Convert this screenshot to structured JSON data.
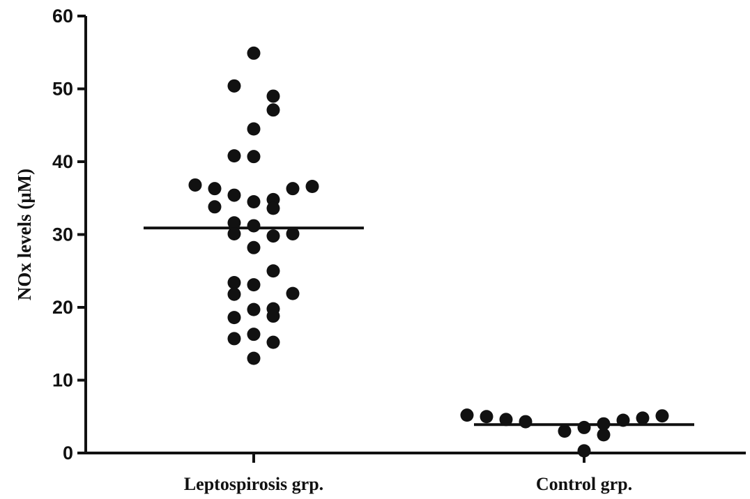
{
  "chart_data": {
    "type": "scatter",
    "title": "",
    "xlabel": "",
    "ylabel": "NOx levels (μM)",
    "ylim": [
      0,
      60
    ],
    "yticks": [
      "0",
      "10",
      "20",
      "30",
      "40",
      "50",
      "60"
    ],
    "categories": [
      "Leptospirosis grp.",
      "Control grp."
    ],
    "grid": false,
    "series": [
      {
        "category": "Leptospirosis grp.",
        "mean": 30.9,
        "values": [
          54.9,
          50.4,
          49.0,
          47.1,
          44.5,
          40.8,
          40.7,
          36.8,
          36.3,
          35.4,
          34.5,
          34.8,
          36.3,
          36.6,
          33.8,
          33.6,
          31.6,
          31.2,
          30.1,
          29.8,
          30.1,
          28.2,
          25.0,
          23.4,
          23.1,
          21.8,
          19.7,
          19.8,
          21.9,
          18.6,
          18.8,
          15.7,
          16.3,
          15.2,
          13.0
        ],
        "offsets": [
          0,
          -1,
          1,
          1,
          0,
          -1,
          0,
          -3,
          -2,
          -1,
          0,
          1,
          2,
          3,
          -2,
          1,
          -1,
          0,
          -1,
          1,
          2,
          0,
          1,
          -1,
          0,
          -1,
          0,
          1,
          2,
          -1,
          1,
          -1,
          0,
          1,
          0
        ]
      },
      {
        "category": "Control grp.",
        "mean": 3.9,
        "values": [
          5.2,
          5.0,
          4.6,
          4.3,
          3.0,
          3.5,
          2.5,
          4.0,
          4.5,
          4.8,
          5.1,
          0.3
        ],
        "offsets": [
          -6,
          -5,
          -4,
          -3,
          -1,
          0,
          1,
          1,
          2,
          3,
          4,
          0
        ]
      }
    ]
  }
}
